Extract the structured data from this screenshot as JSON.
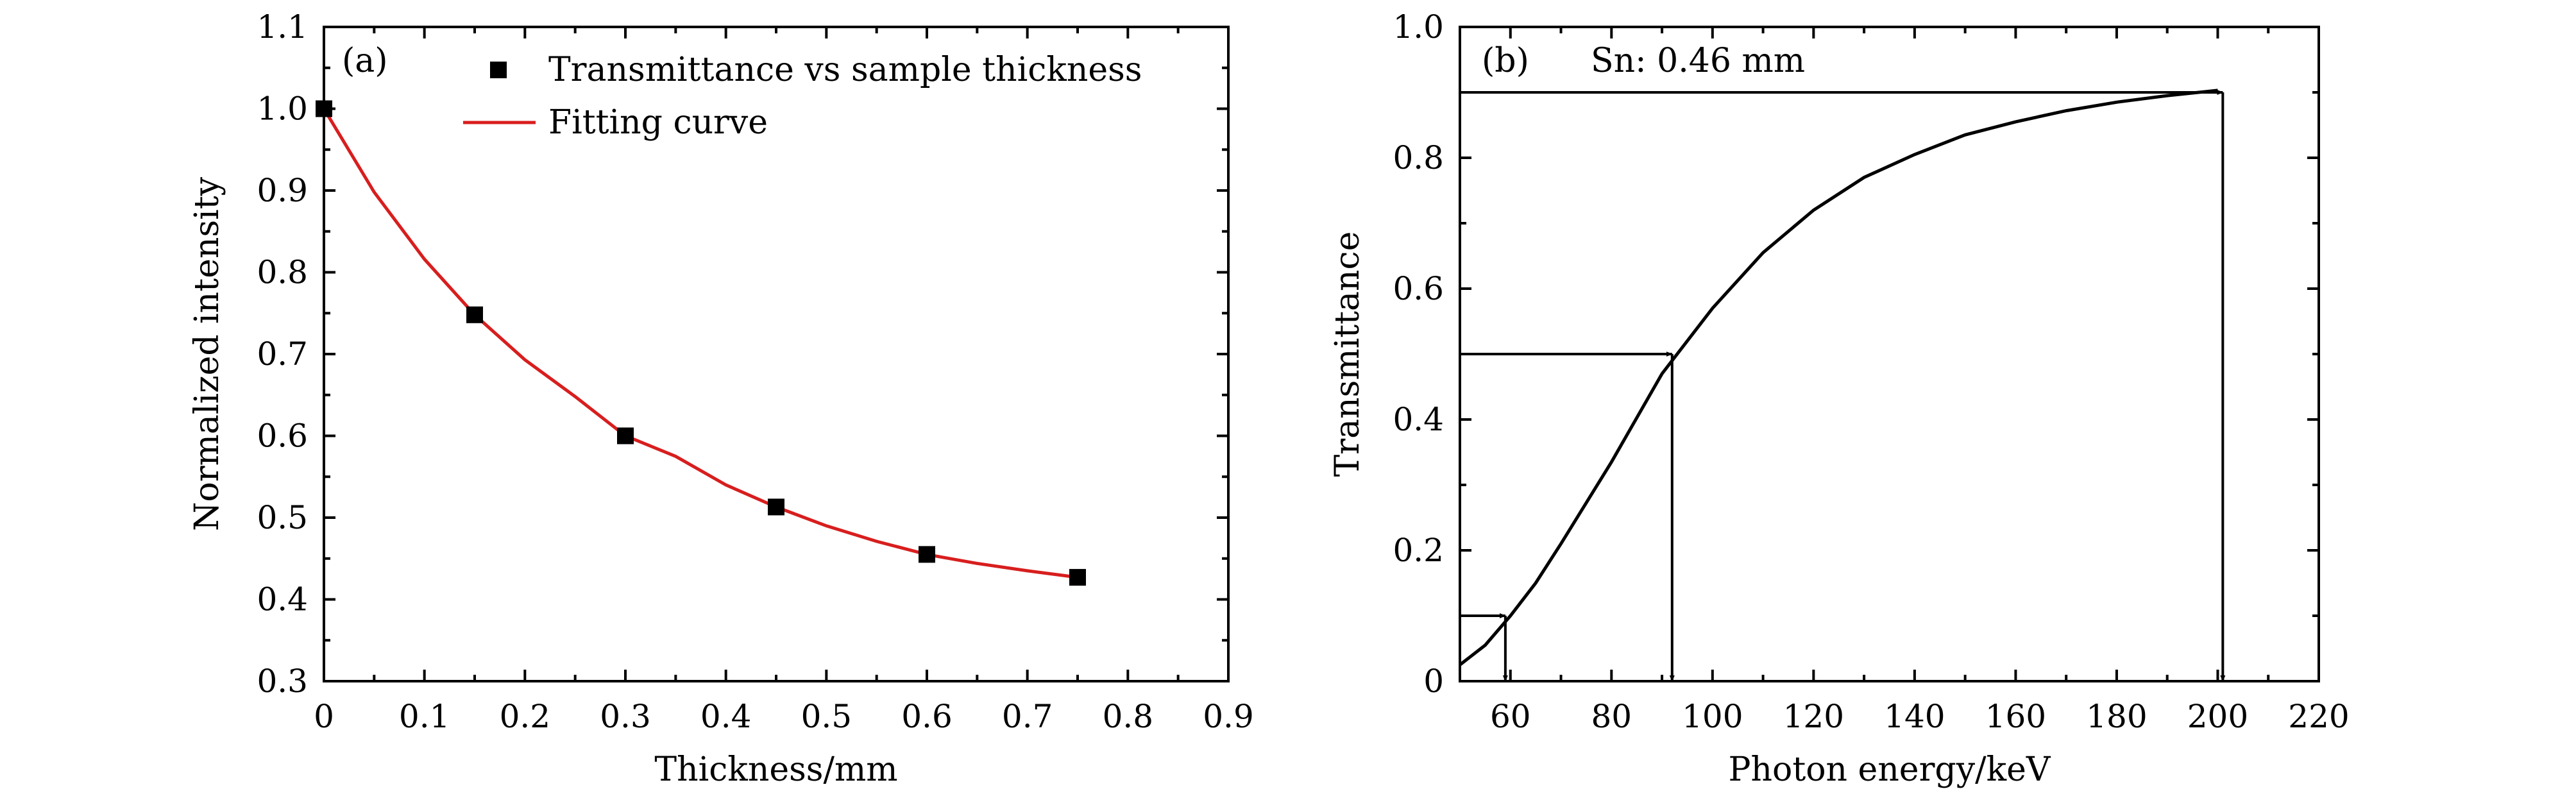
{
  "chart_data": [
    {
      "type": "scatter",
      "panel_label": "(a)",
      "xlabel": "Thickness/mm",
      "ylabel": "Normalized intensity",
      "xlim": [
        0,
        0.9
      ],
      "ylim": [
        0.3,
        1.1
      ],
      "xticks": [
        "0",
        "0.1",
        "0.2",
        "0.3",
        "0.4",
        "0.5",
        "0.6",
        "0.7",
        "0.8",
        "0.9"
      ],
      "yticks": [
        "0.3",
        "0.4",
        "0.5",
        "0.6",
        "0.7",
        "0.8",
        "0.9",
        "1.0",
        "1.1"
      ],
      "series": [
        {
          "name": "Transmittance vs sample thickness",
          "marker": "square",
          "color": "#000000",
          "x": [
            0,
            0.15,
            0.3,
            0.45,
            0.6,
            0.75
          ],
          "y": [
            1.0,
            0.748,
            0.6,
            0.513,
            0.455,
            0.427
          ]
        },
        {
          "name": "Fitting curve",
          "type": "line",
          "color": "#d81e1e",
          "x": [
            0,
            0.05,
            0.1,
            0.15,
            0.2,
            0.25,
            0.3,
            0.35,
            0.4,
            0.45,
            0.5,
            0.55,
            0.6,
            0.65,
            0.7,
            0.75
          ],
          "y": [
            1.0,
            0.898,
            0.816,
            0.748,
            0.693,
            0.648,
            0.6,
            0.575,
            0.54,
            0.513,
            0.49,
            0.471,
            0.455,
            0.444,
            0.435,
            0.427
          ]
        }
      ],
      "legend": [
        "Transmittance vs sample thickness",
        "Fitting curve"
      ],
      "legend_position": "top-right"
    },
    {
      "type": "line",
      "panel_label": "(b)",
      "annotation": "Sn: 0.46 mm",
      "xlabel": "Photon energy/keV",
      "ylabel": "Transmittance",
      "xlim": [
        50,
        220
      ],
      "ylim": [
        0,
        1.0
      ],
      "xticks": [
        "60",
        "80",
        "100",
        "120",
        "140",
        "160",
        "180",
        "200",
        "220"
      ],
      "yticks": [
        "0",
        "0.2",
        "0.4",
        "0.6",
        "0.8",
        "1.0"
      ],
      "series": [
        {
          "name": "Transmittance",
          "color": "#000000",
          "x": [
            50,
            55,
            60,
            65,
            70,
            80,
            90,
            100,
            110,
            120,
            130,
            140,
            150,
            160,
            170,
            180,
            190,
            200
          ],
          "y": [
            0.025,
            0.055,
            0.1,
            0.15,
            0.21,
            0.335,
            0.47,
            0.57,
            0.655,
            0.72,
            0.77,
            0.805,
            0.835,
            0.855,
            0.872,
            0.885,
            0.895,
            0.903
          ]
        }
      ],
      "arrows": [
        {
          "energy": 59,
          "transmittance": 0.1
        },
        {
          "energy": 92,
          "transmittance": 0.5
        },
        {
          "energy": 201,
          "transmittance": 0.9
        }
      ]
    }
  ]
}
